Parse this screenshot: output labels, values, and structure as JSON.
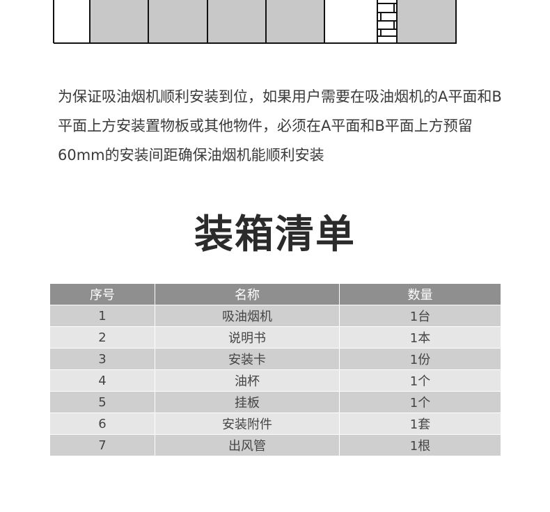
{
  "paragraph": "为保证吸油烟机顺利安装到位，如果用户需要在吸油烟机的A平面和B平面上方安装置物板或其他物件，必须在A平面和B平面上方预留60mm的安装间距确保油烟机能顺利安装",
  "section_title": "装箱清单",
  "table": {
    "headers": [
      "序号",
      "名称",
      "数量"
    ],
    "rows": [
      [
        "1",
        "吸油烟机",
        "1台"
      ],
      [
        "2",
        "说明书",
        "1本"
      ],
      [
        "3",
        "安装卡",
        "1份"
      ],
      [
        "4",
        "油杯",
        "1个"
      ],
      [
        "5",
        "挂板",
        "1个"
      ],
      [
        "6",
        "安装附件",
        "1套"
      ],
      [
        "7",
        "出风管",
        "1根"
      ]
    ]
  },
  "colors": {
    "header_bg": "#8f8f8f",
    "row_dark": "#cfcfcf",
    "row_light": "#e6e6e6",
    "cabinet_fill": "#c8c8c8"
  }
}
